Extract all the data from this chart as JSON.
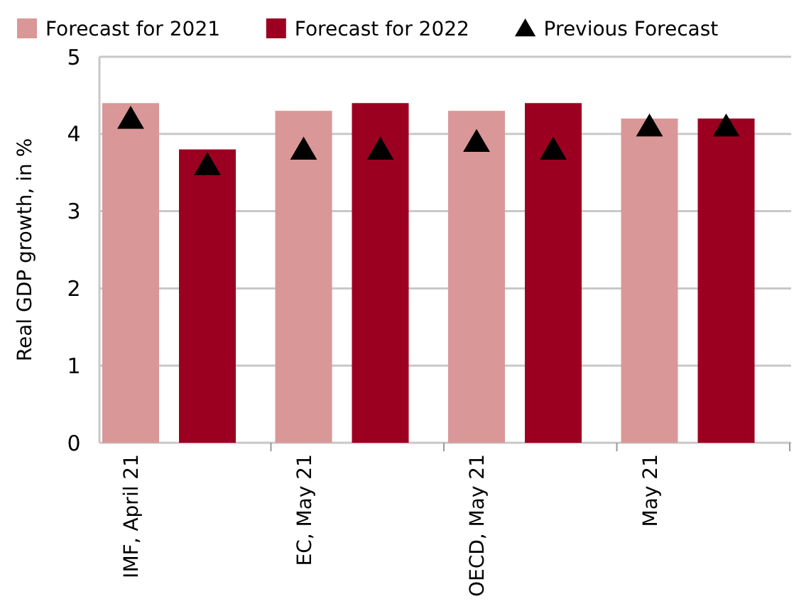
{
  "chart_data": {
    "type": "bar",
    "ylabel": "Real GDP growth, in %",
    "categories": [
      "IMF, April 21",
      "EC, May 21",
      "OECD, May 21",
      "May 21"
    ],
    "ylim": [
      0,
      5
    ],
    "yticks": [
      0,
      1,
      2,
      3,
      4,
      5
    ],
    "grid": "y",
    "legend": "top",
    "marker": "triangle",
    "series": [
      {
        "name": "Forecast for 2021",
        "color": "#da9797",
        "values": [
          4.4,
          4.3,
          4.3,
          4.2
        ]
      },
      {
        "name": "Forecast for 2022",
        "color": "#9c0020",
        "values": [
          3.8,
          4.4,
          4.4,
          4.2
        ]
      },
      {
        "name": "Previous Forecast",
        "type": "scatter",
        "color": "#000000",
        "values": [
          4.2,
          3.8,
          3.9,
          4.1
        ]
      },
      {
        "type": "scatter",
        "color": "#000000",
        "values": [
          3.6,
          3.8,
          3.8,
          4.1
        ]
      }
    ]
  }
}
